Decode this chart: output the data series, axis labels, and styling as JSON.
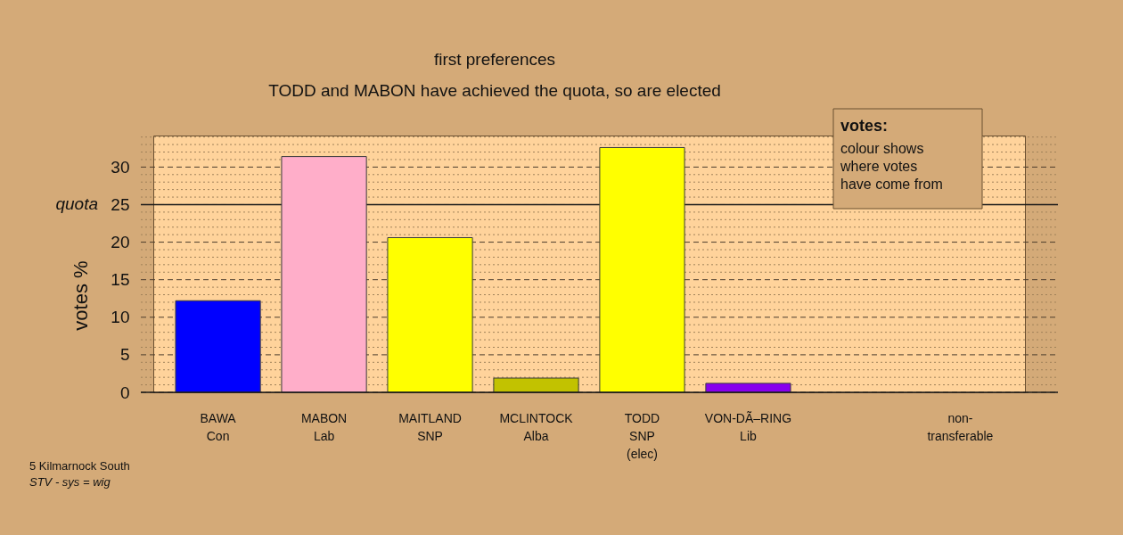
{
  "chart_data": {
    "type": "bar",
    "title": "first preferences",
    "subtitle": "TODD and MABON have achieved the quota, so are elected",
    "ylabel": "votes %",
    "categories": [
      "BAWA\nCon",
      "MABON\nLab",
      "MAITLAND\nSNP",
      "MCLINTOCK\nAlba",
      "TODD\nSNP\n(elec)",
      "VON-DÃ–RING\nLib",
      null,
      "non-\ntransferable"
    ],
    "values": [
      12.2,
      31.4,
      20.6,
      1.9,
      32.6,
      1.2,
      null,
      null
    ],
    "colors": [
      "#0000ff",
      "#ffaec9",
      "#ffff00",
      "#c2c200",
      "#ffff00",
      "#8800ee",
      null,
      null
    ],
    "ylim": [
      0,
      34.2
    ],
    "yticks": [
      0,
      {
        "value": 1,
        "label": null
      },
      {
        "value": 2,
        "label": null
      },
      {
        "value": 3,
        "label": null
      },
      {
        "value": 4,
        "label": null
      },
      5,
      {
        "value": 6,
        "label": null
      },
      {
        "value": 7,
        "label": null
      },
      {
        "value": 8,
        "label": null
      },
      {
        "value": 9,
        "label": null
      },
      10,
      {
        "value": 11,
        "label": null
      },
      {
        "value": 12,
        "label": null
      },
      {
        "value": 13,
        "label": null
      },
      {
        "value": 14,
        "label": null
      },
      15,
      {
        "value": 16,
        "label": null
      },
      {
        "value": 17,
        "label": null
      },
      {
        "value": 18,
        "label": null
      },
      {
        "value": 19,
        "label": null
      },
      20,
      {
        "value": 21,
        "label": null
      },
      {
        "value": 22,
        "label": null
      },
      {
        "value": 23,
        "label": null
      },
      {
        "value": 24,
        "label": null
      },
      25,
      {
        "value": 26,
        "label": null
      },
      {
        "value": 27,
        "label": null
      },
      {
        "value": 28,
        "label": null
      },
      {
        "value": 29,
        "label": null
      },
      30,
      {
        "value": 31,
        "label": null
      },
      {
        "value": 32,
        "label": null
      },
      {
        "value": 33,
        "label": null
      },
      {
        "value": 34,
        "label": null
      }
    ],
    "grid": "y",
    "ref_lines": [
      {
        "axis": "y",
        "value": 25,
        "label": "quota"
      }
    ],
    "annotations": [
      "votes:",
      "colour shows\nwhere votes\nhave come from",
      "5 Kilmarnock South",
      "STV - sys = wig"
    ]
  }
}
